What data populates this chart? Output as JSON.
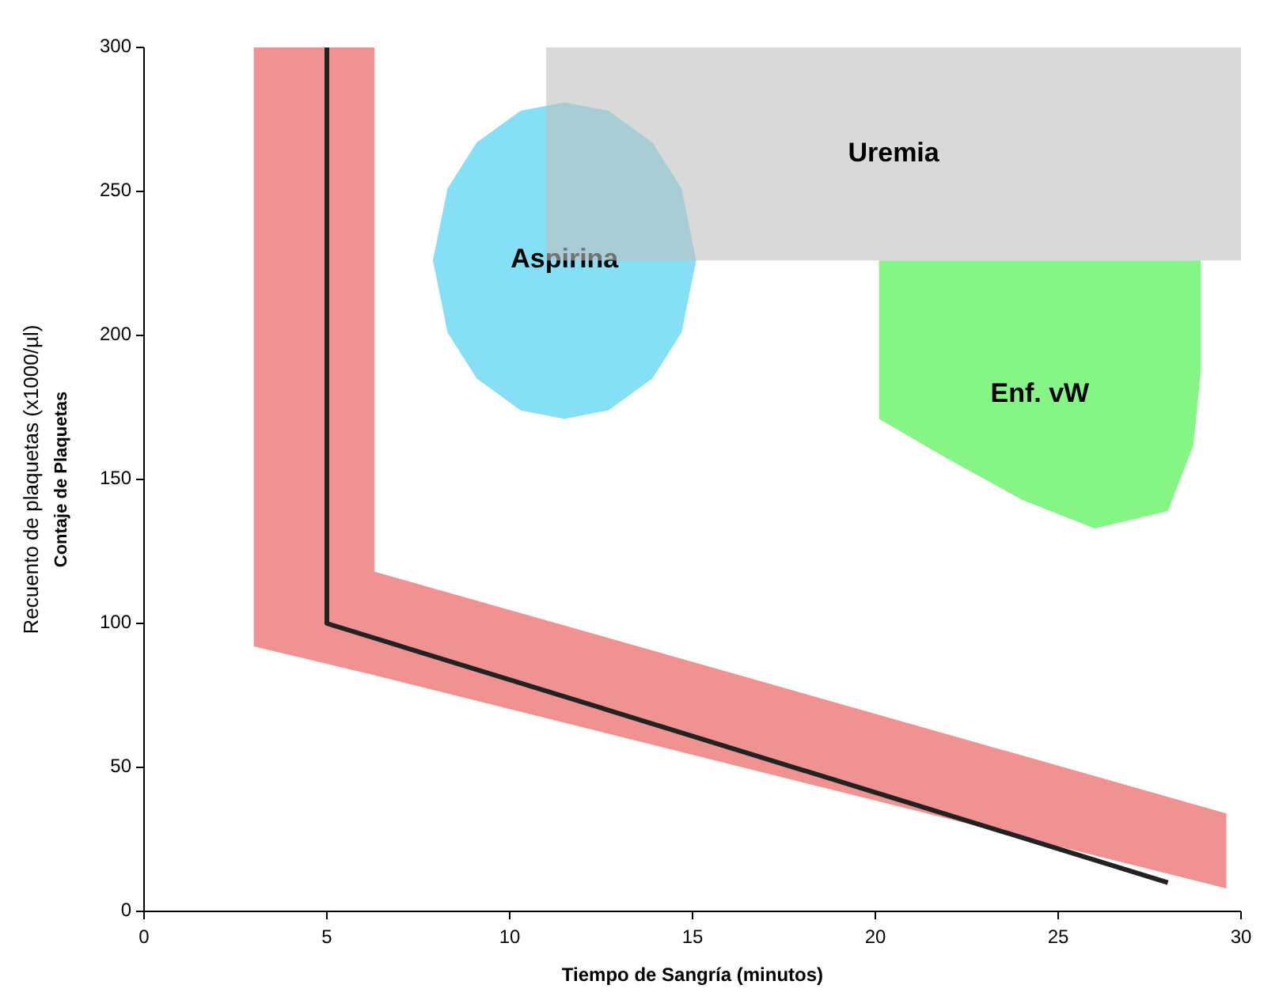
{
  "chart_data": {
    "type": "area",
    "xlabel": "Tiempo de Sangría (minutos)",
    "ylabel": "Recuento de plaquetas (x1000/µl)",
    "annotations": [
      "Contaje de Plaquetas"
    ],
    "xlim": [
      0,
      30
    ],
    "ylim": [
      0,
      300
    ],
    "xticks": [
      0,
      5,
      10,
      15,
      20,
      25,
      30
    ],
    "yticks": [
      0,
      50,
      100,
      150,
      200,
      250,
      300
    ],
    "grid": false,
    "series": [
      {
        "color": "#e84a4a",
        "x": [
          3,
          6.3,
          6.3,
          29.6,
          29.6,
          6.3,
          3
        ],
        "values": [
          300,
          300,
          118,
          34,
          8,
          82,
          92
        ]
      },
      {
        "name": "Aspirina",
        "color": "#33ccee",
        "x": [
          7.9,
          8.3,
          9.1,
          10.3,
          11.5,
          12.7,
          13.9,
          14.7,
          15.1,
          14.7,
          13.9,
          12.7,
          11.5,
          10.3,
          9.1,
          8.3
        ],
        "values": [
          226,
          251,
          267,
          278,
          281,
          278,
          267,
          251,
          226,
          201,
          185,
          174,
          171,
          174,
          185,
          201
        ]
      },
      {
        "name": "Enf. vW",
        "color": "#33ee33",
        "x": [
          20.1,
          28.9,
          28.9,
          28.7,
          28,
          26,
          24,
          22,
          20.1
        ],
        "values": [
          226,
          226,
          188,
          162,
          139,
          133,
          143,
          157,
          171
        ]
      },
      {
        "name": "Uremia",
        "color": "#c0c0c0",
        "x": [
          11,
          30,
          30,
          11
        ],
        "values": [
          300,
          300,
          226,
          226
        ]
      },
      {
        "type": "line",
        "color": "#222222",
        "x": [
          5,
          5,
          28
        ],
        "values": [
          300,
          100,
          10
        ]
      }
    ]
  }
}
